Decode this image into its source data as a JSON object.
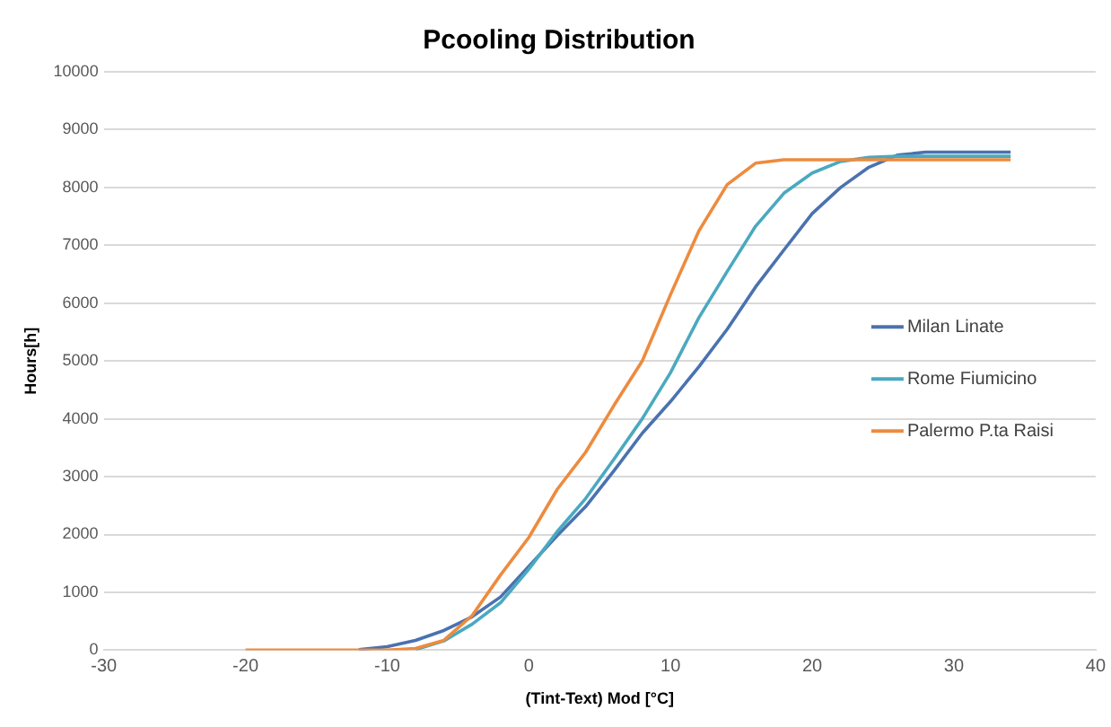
{
  "chart_data": {
    "type": "line",
    "title": "Pcooling Distribution",
    "xlabel": "(Tint-Text) Mod [°C]",
    "ylabel": "Hours[h]",
    "x": [
      -20,
      -18,
      -16,
      -14,
      -12,
      -10,
      -8,
      -6,
      -4,
      -2,
      0,
      2,
      4,
      6,
      8,
      10,
      12,
      14,
      16,
      18,
      20,
      22,
      24,
      26,
      28,
      30,
      32,
      34
    ],
    "series": [
      {
        "name": "Milan Linate",
        "color": "#4a72b0",
        "values": [
          null,
          null,
          null,
          null,
          10,
          60,
          170,
          340,
          580,
          920,
          1450,
          1980,
          2480,
          3100,
          3750,
          4300,
          4900,
          5550,
          6280,
          6920,
          7550,
          8000,
          8350,
          8560,
          8610,
          8610,
          8610,
          8610
        ]
      },
      {
        "name": "Rome Fiumicino",
        "color": "#4aa9c0",
        "values": [
          null,
          null,
          null,
          null,
          null,
          null,
          10,
          160,
          450,
          820,
          1400,
          2050,
          2620,
          3300,
          4000,
          4800,
          5750,
          6550,
          7330,
          7900,
          8250,
          8450,
          8520,
          8540,
          8540,
          8540,
          8540,
          8540
        ]
      },
      {
        "name": "Palermo P.ta Raisi",
        "color": "#ed8b3e",
        "values": [
          0,
          0,
          0,
          0,
          0,
          0,
          30,
          170,
          600,
          1300,
          1950,
          2780,
          3420,
          4230,
          5000,
          6150,
          7250,
          8050,
          8420,
          8480,
          8480,
          8480,
          8480,
          8480,
          8480,
          8480,
          8480,
          8480
        ]
      }
    ],
    "xlim": [
      -30,
      40
    ],
    "xticks": [
      -30,
      -20,
      -10,
      0,
      10,
      20,
      30,
      40
    ],
    "ylim": [
      0,
      10000
    ],
    "yticks": [
      0,
      1000,
      2000,
      3000,
      4000,
      5000,
      6000,
      7000,
      8000,
      9000,
      10000
    ],
    "grid": "y",
    "legend": "right",
    "marker": "none",
    "line_style": "solid"
  }
}
